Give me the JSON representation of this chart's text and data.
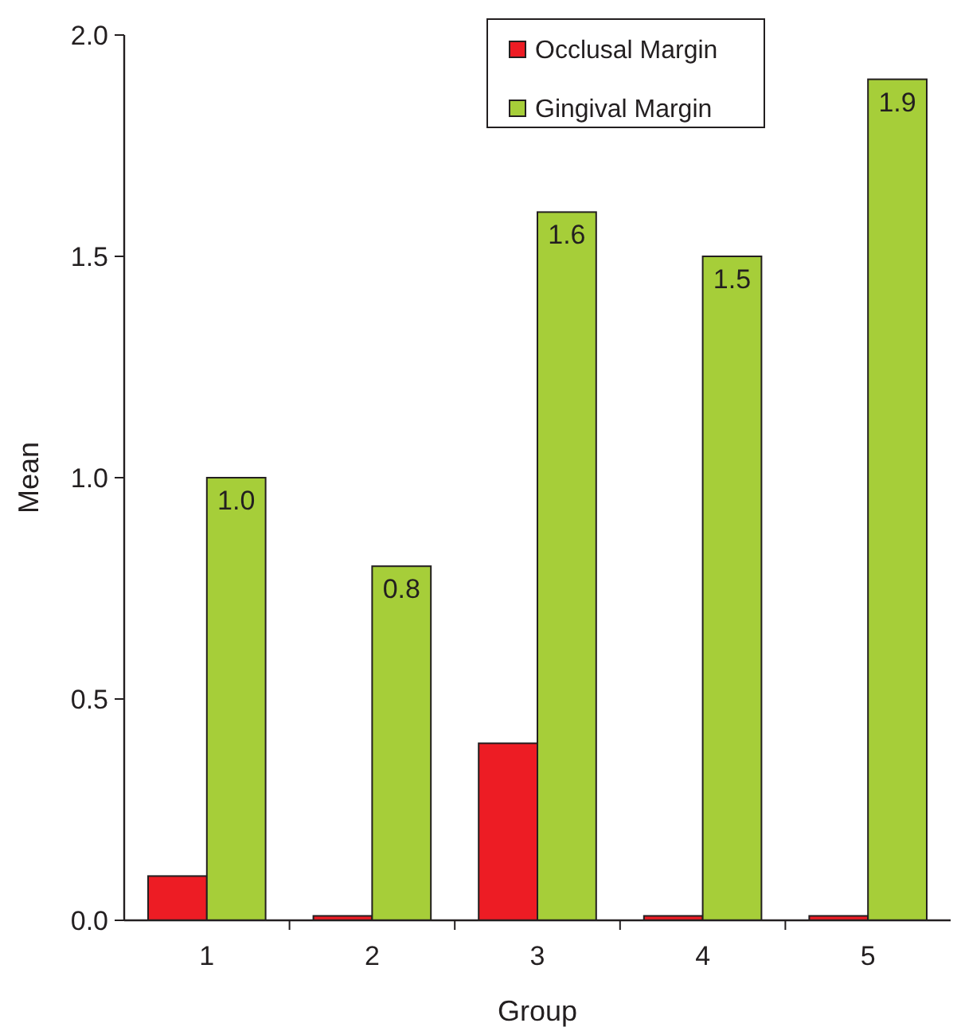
{
  "chart_data": {
    "type": "bar",
    "xlabel": "Group",
    "ylabel": "Mean",
    "categories": [
      "1",
      "2",
      "3",
      "4",
      "5"
    ],
    "series": [
      {
        "name": "Occlusal Margin",
        "color": "#ed1c24",
        "values": [
          0.1,
          0.01,
          0.4,
          0.01,
          0.01
        ]
      },
      {
        "name": "Gingival Margin",
        "color": "#a6ce39",
        "values": [
          1.0,
          0.8,
          1.6,
          1.5,
          1.9
        ],
        "value_labels": [
          "1.0",
          "0.8",
          "1.6",
          "1.5",
          "1.9"
        ]
      }
    ],
    "ylim": [
      0,
      2
    ],
    "yticks": [
      {
        "value": 0,
        "label": "0.0"
      },
      {
        "value": 0.5,
        "label": "0.5"
      },
      {
        "value": 1,
        "label": "1.0"
      },
      {
        "value": 1.5,
        "label": "1.5"
      },
      {
        "value": 2,
        "label": "2.0"
      }
    ],
    "grid": false,
    "legend": "top right"
  }
}
